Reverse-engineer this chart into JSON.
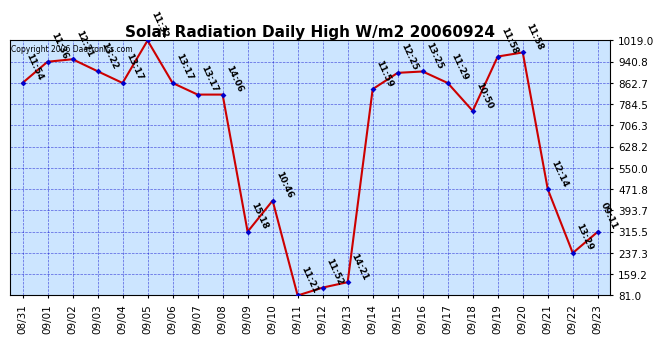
{
  "title": "Solar Radiation Daily High W/m2 20060924",
  "copyright": "Copyright 2006 Daetronics.com",
  "dates": [
    "08/31",
    "09/01",
    "09/02",
    "09/03",
    "09/04",
    "09/05",
    "09/06",
    "09/07",
    "09/08",
    "09/09",
    "09/10",
    "09/11",
    "09/12",
    "09/13",
    "09/14",
    "09/15",
    "09/16",
    "09/17",
    "09/18",
    "09/19",
    "09/20",
    "09/21",
    "09/22",
    "09/23"
  ],
  "values": [
    862.7,
    940.8,
    950.0,
    906.0,
    862.7,
    1019.0,
    862.7,
    820.0,
    820.0,
    315.5,
    430.0,
    81.0,
    110.0,
    130.0,
    840.0,
    900.0,
    905.0,
    862.7,
    760.0,
    960.0,
    975.0,
    471.8,
    237.3,
    315.5
  ],
  "labels": [
    "11:54",
    "11:36",
    "12:21",
    "13:22",
    "13:17",
    "11:32",
    "13:17",
    "13:17",
    "14:06",
    "15:18",
    "10:46",
    "11:21",
    "11:52",
    "14:21",
    "11:59",
    "12:25",
    "13:25",
    "11:29",
    "10:50",
    "11:58",
    "11:58",
    "12:14",
    "13:29",
    "09:11"
  ],
  "yticks": [
    81.0,
    159.2,
    237.3,
    315.5,
    393.7,
    471.8,
    550.0,
    628.2,
    706.3,
    784.5,
    862.7,
    940.8,
    1019.0
  ],
  "ymin": 81.0,
  "ymax": 1019.0,
  "line_color": "#cc0000",
  "marker_color": "#0000cc",
  "bg_color": "#cce5ff",
  "grid_color": "#0000cc",
  "title_fontsize": 11,
  "label_fontsize": 6.5
}
